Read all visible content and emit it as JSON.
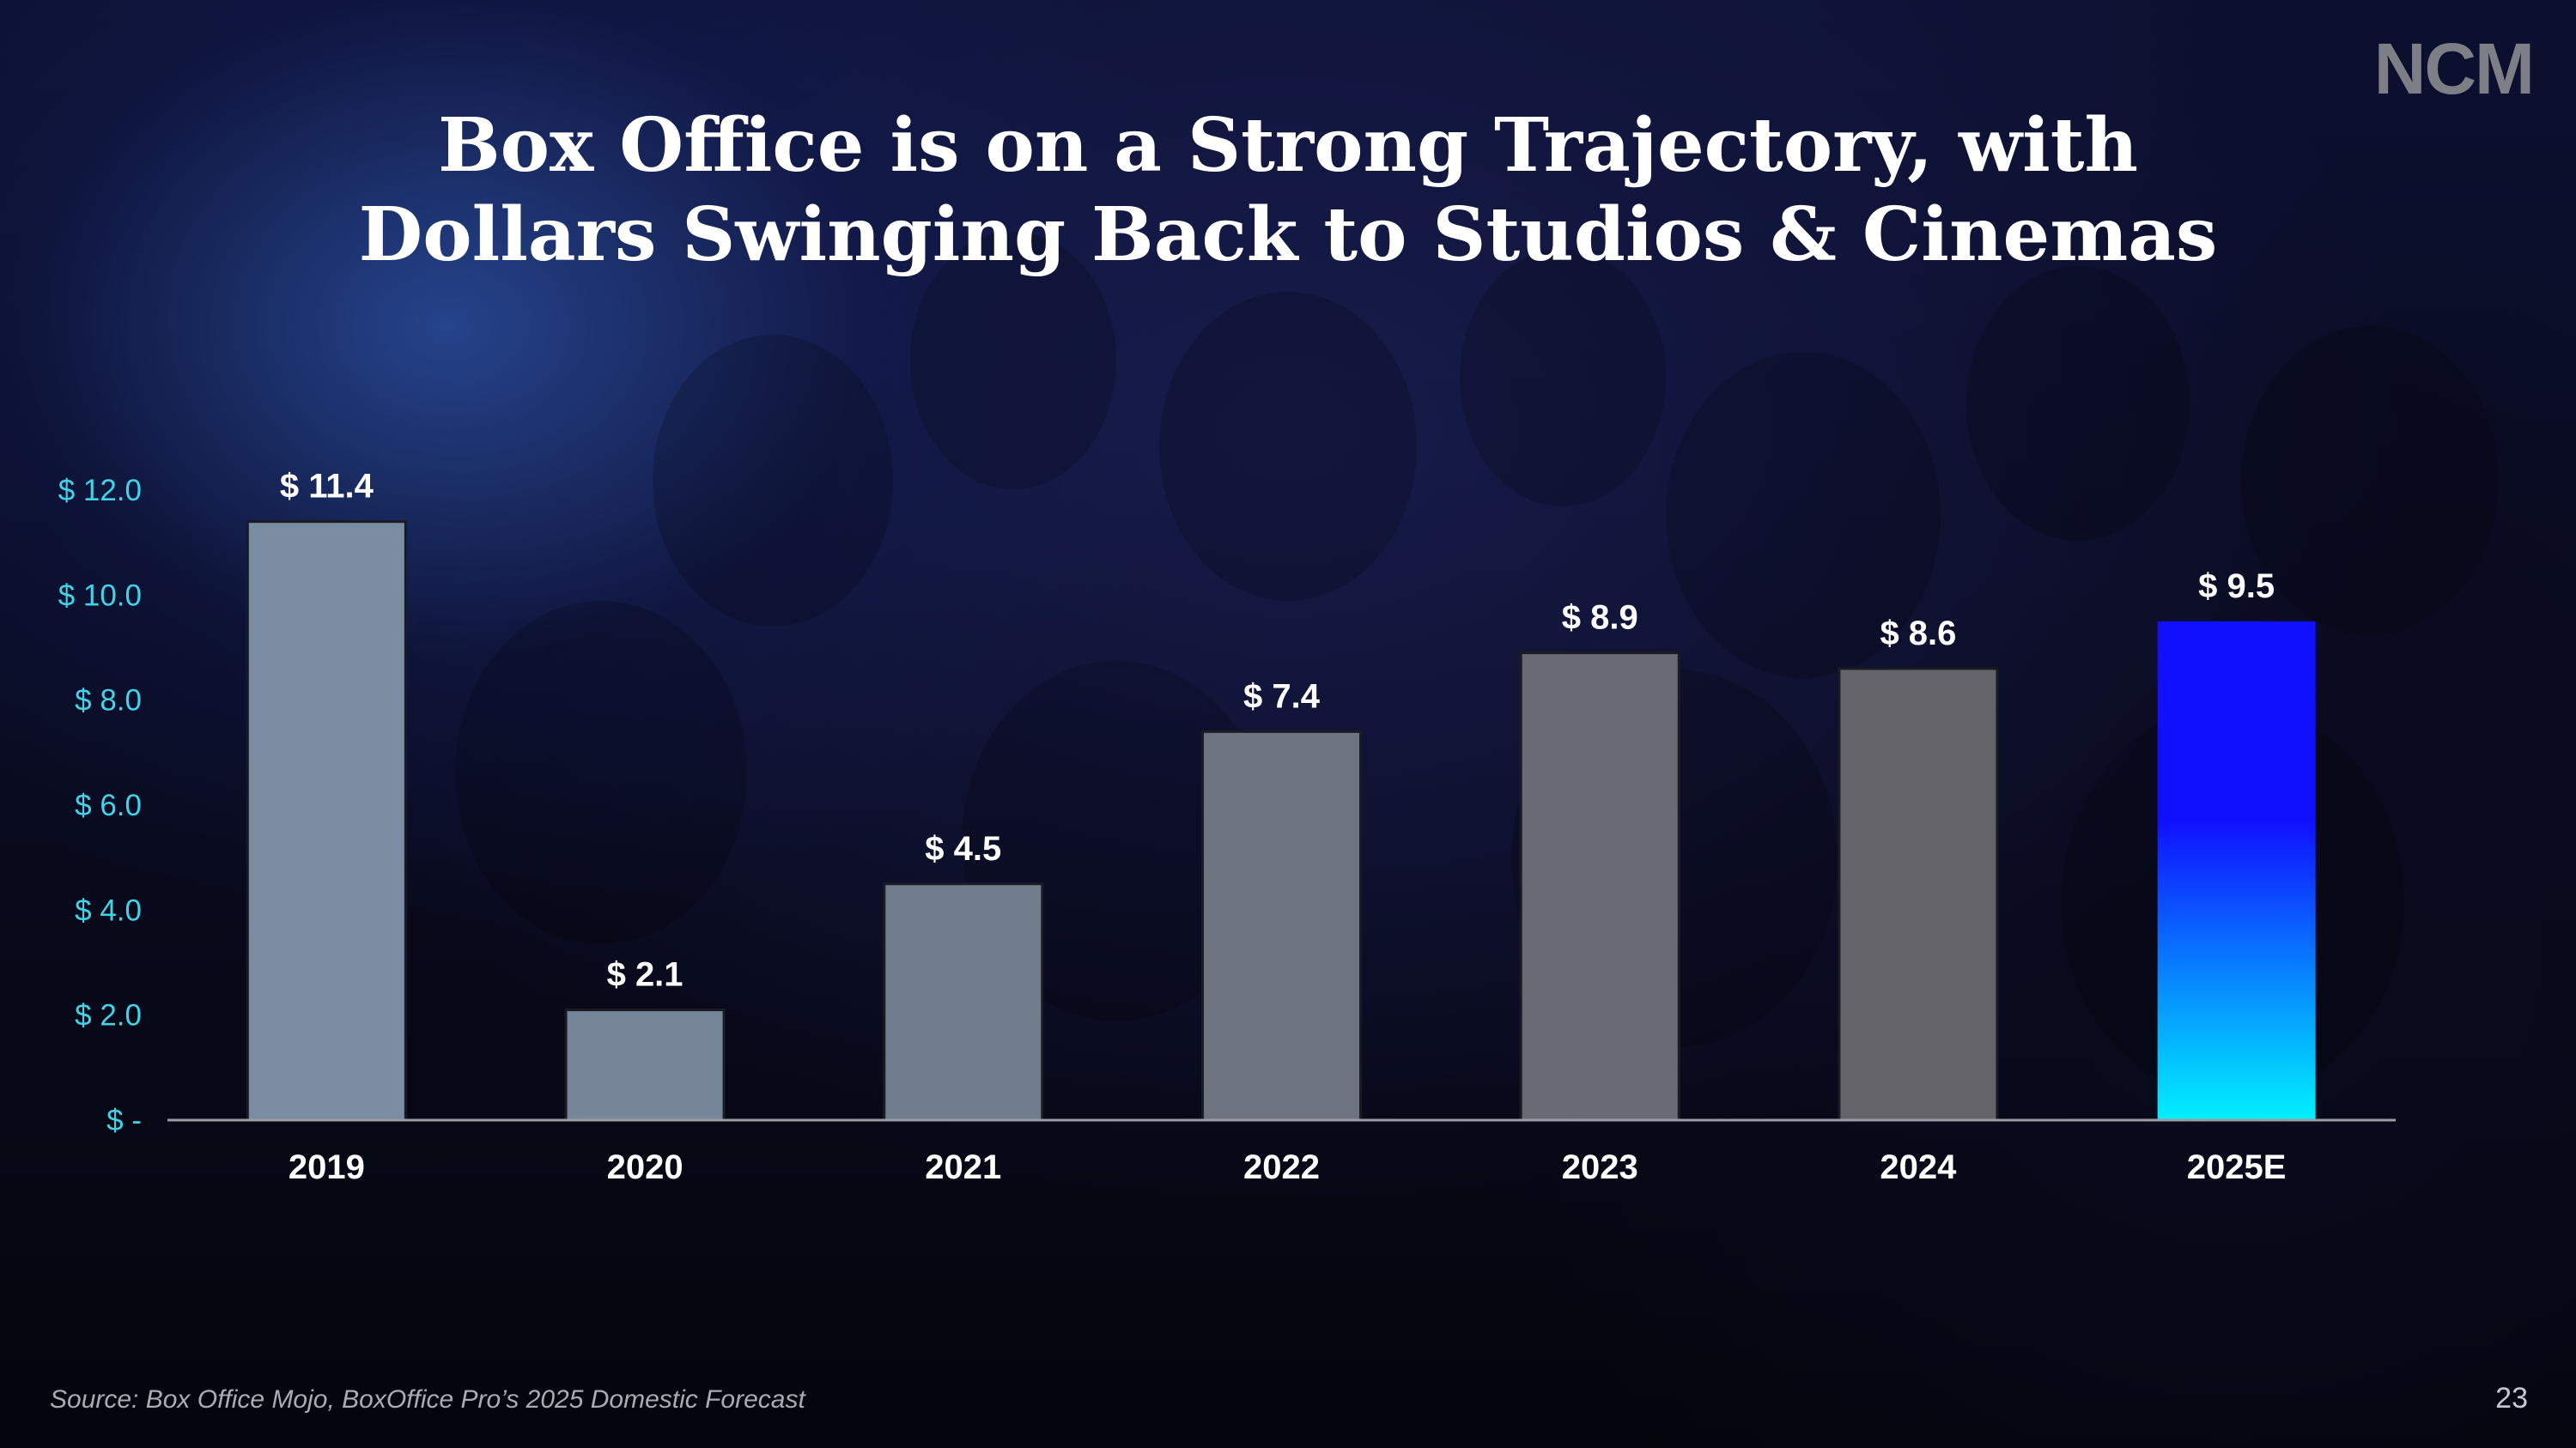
{
  "logo_text": "NCM",
  "title_lines": [
    "Box Office is on a Strong Trajectory, with",
    "Dollars Swinging Back to Studios & Cinemas"
  ],
  "source": "Source: Box Office Mojo, BoxOffice Pro’s 2025 Domestic Forecast",
  "page_number": "23",
  "chart_data": {
    "type": "bar",
    "categories": [
      "2019",
      "2020",
      "2021",
      "2022",
      "2023",
      "2024",
      "2025E"
    ],
    "values": [
      11.4,
      2.1,
      4.5,
      7.4,
      8.9,
      8.6,
      9.5
    ],
    "data_labels": [
      "$ 11.4",
      "$ 2.1",
      "$ 4.5",
      "$ 7.4",
      "$ 8.9",
      "$ 8.6",
      "$ 9.5"
    ],
    "y_tick_values": [
      0,
      2,
      4,
      6,
      8,
      10,
      12
    ],
    "y_tick_labels": [
      "$ -",
      "$ 2.0",
      "$ 4.0",
      "$ 6.0",
      "$ 8.0",
      "$ 10.0",
      "$ 12.0"
    ],
    "ylim": [
      0,
      12
    ],
    "grid": false,
    "colors": {
      "bars_start": "#7b8da3",
      "bars_end": "#636369",
      "highlight_top": "#1010ff",
      "highlight_bottom": "#00f0ff",
      "tick_label": "#3fd4e8",
      "data_label": "#ffffff",
      "axis_line": "#9a9ca4"
    },
    "highlight_category": "2025E"
  }
}
